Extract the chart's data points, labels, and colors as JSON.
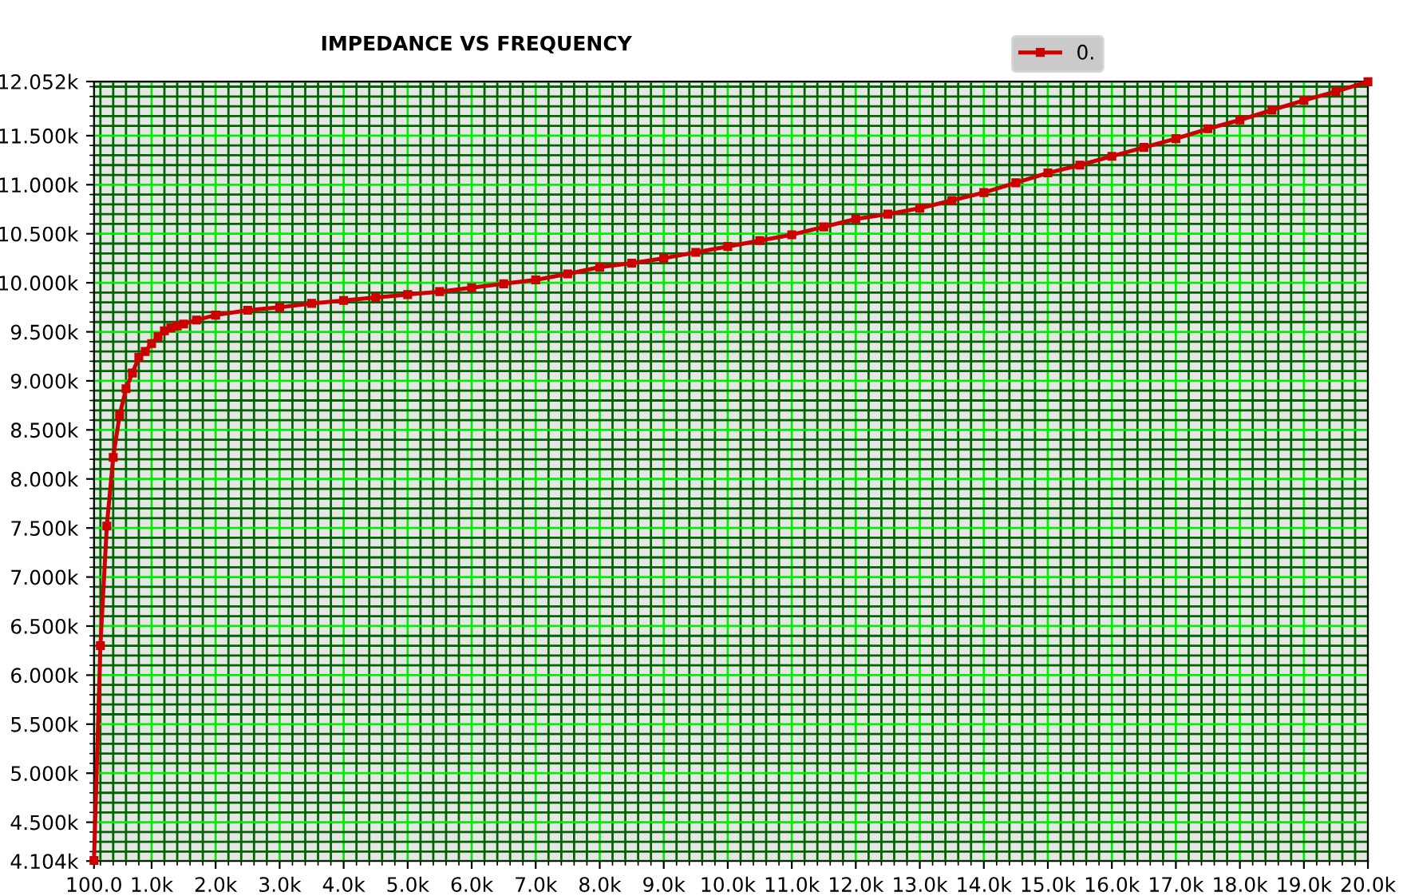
{
  "chart_data": {
    "type": "line",
    "title": "IMPEDANCE VS FREQUENCY",
    "x": [
      100,
      200,
      300,
      400,
      500,
      600,
      700,
      800,
      900,
      1000,
      1100,
      1200,
      1300,
      1400,
      1500,
      1700,
      2000,
      2500,
      3000,
      3500,
      4000,
      4500,
      5000,
      5500,
      6000,
      6500,
      7000,
      7500,
      8000,
      8500,
      9000,
      9500,
      10000,
      10500,
      11000,
      11500,
      12000,
      12500,
      13000,
      13500,
      14000,
      14500,
      15000,
      15500,
      16000,
      16500,
      17000,
      17500,
      18000,
      18500,
      19000,
      19500,
      20000
    ],
    "series": [
      {
        "name": "0.",
        "color": "#cc0000",
        "values": [
          4110,
          6300,
          7520,
          8220,
          8650,
          8920,
          9080,
          9240,
          9300,
          9380,
          9450,
          9510,
          9540,
          9560,
          9580,
          9620,
          9670,
          9720,
          9750,
          9790,
          9820,
          9850,
          9880,
          9910,
          9950,
          9990,
          10030,
          10090,
          10160,
          10200,
          10250,
          10310,
          10370,
          10430,
          10490,
          10570,
          10650,
          10700,
          10760,
          10840,
          10920,
          11020,
          11120,
          11200,
          11290,
          11380,
          11470,
          11570,
          11660,
          11760,
          11860,
          11950,
          12050
        ]
      }
    ],
    "xlim": [
      100,
      20000
    ],
    "xticks": [
      {
        "value": 100,
        "label": "100.0"
      },
      {
        "value": 1000,
        "label": "1.0k"
      },
      {
        "value": 2000,
        "label": "2.0k"
      },
      {
        "value": 3000,
        "label": "3.0k"
      },
      {
        "value": 4000,
        "label": "4.0k"
      },
      {
        "value": 5000,
        "label": "5.0k"
      },
      {
        "value": 6000,
        "label": "6.0k"
      },
      {
        "value": 7000,
        "label": "7.0k"
      },
      {
        "value": 8000,
        "label": "8.0k"
      },
      {
        "value": 9000,
        "label": "9.0k"
      },
      {
        "value": 10000,
        "label": "10.0k"
      },
      {
        "value": 11000,
        "label": "11.0k"
      },
      {
        "value": 12000,
        "label": "12.0k"
      },
      {
        "value": 13000,
        "label": "13.0k"
      },
      {
        "value": 14000,
        "label": "14.0k"
      },
      {
        "value": 15000,
        "label": "15.0k"
      },
      {
        "value": 16000,
        "label": "16.0k"
      },
      {
        "value": 17000,
        "label": "17.0k"
      },
      {
        "value": 18000,
        "label": "18.0k"
      },
      {
        "value": 19000,
        "label": "19.0k"
      },
      {
        "value": 20000,
        "label": "20.0k"
      },
      {
        "value": 200,
        "label": null
      },
      {
        "value": 400,
        "label": null
      },
      {
        "value": 600,
        "label": null
      },
      {
        "value": 800,
        "label": null
      },
      {
        "value": 1200,
        "label": null
      },
      {
        "value": 1400,
        "label": null
      },
      {
        "value": 1600,
        "label": null
      },
      {
        "value": 1800,
        "label": null
      },
      {
        "value": 2200,
        "label": null
      },
      {
        "value": 2400,
        "label": null
      },
      {
        "value": 2600,
        "label": null
      },
      {
        "value": 2800,
        "label": null
      },
      {
        "value": 3200,
        "label": null
      },
      {
        "value": 3400,
        "label": null
      },
      {
        "value": 3600,
        "label": null
      },
      {
        "value": 3800,
        "label": null
      },
      {
        "value": 4200,
        "label": null
      },
      {
        "value": 4400,
        "label": null
      },
      {
        "value": 4600,
        "label": null
      },
      {
        "value": 4800,
        "label": null
      },
      {
        "value": 5200,
        "label": null
      },
      {
        "value": 5400,
        "label": null
      },
      {
        "value": 5600,
        "label": null
      },
      {
        "value": 5800,
        "label": null
      },
      {
        "value": 6200,
        "label": null
      },
      {
        "value": 6400,
        "label": null
      },
      {
        "value": 6600,
        "label": null
      },
      {
        "value": 6800,
        "label": null
      },
      {
        "value": 7200,
        "label": null
      },
      {
        "value": 7400,
        "label": null
      },
      {
        "value": 7600,
        "label": null
      },
      {
        "value": 7800,
        "label": null
      },
      {
        "value": 8200,
        "label": null
      },
      {
        "value": 8400,
        "label": null
      },
      {
        "value": 8600,
        "label": null
      },
      {
        "value": 8800,
        "label": null
      },
      {
        "value": 9200,
        "label": null
      },
      {
        "value": 9400,
        "label": null
      },
      {
        "value": 9600,
        "label": null
      },
      {
        "value": 9800,
        "label": null
      },
      {
        "value": 10200,
        "label": null
      },
      {
        "value": 10400,
        "label": null
      },
      {
        "value": 10600,
        "label": null
      },
      {
        "value": 10800,
        "label": null
      },
      {
        "value": 11200,
        "label": null
      },
      {
        "value": 11400,
        "label": null
      },
      {
        "value": 11600,
        "label": null
      },
      {
        "value": 11800,
        "label": null
      },
      {
        "value": 12200,
        "label": null
      },
      {
        "value": 12400,
        "label": null
      },
      {
        "value": 12600,
        "label": null
      },
      {
        "value": 12800,
        "label": null
      },
      {
        "value": 13200,
        "label": null
      },
      {
        "value": 13400,
        "label": null
      },
      {
        "value": 13600,
        "label": null
      },
      {
        "value": 13800,
        "label": null
      },
      {
        "value": 14200,
        "label": null
      },
      {
        "value": 14400,
        "label": null
      },
      {
        "value": 14600,
        "label": null
      },
      {
        "value": 14800,
        "label": null
      },
      {
        "value": 15200,
        "label": null
      },
      {
        "value": 15400,
        "label": null
      },
      {
        "value": 15600,
        "label": null
      },
      {
        "value": 15800,
        "label": null
      },
      {
        "value": 16200,
        "label": null
      },
      {
        "value": 16400,
        "label": null
      },
      {
        "value": 16600,
        "label": null
      },
      {
        "value": 16800,
        "label": null
      },
      {
        "value": 17200,
        "label": null
      },
      {
        "value": 17400,
        "label": null
      },
      {
        "value": 17600,
        "label": null
      },
      {
        "value": 17800,
        "label": null
      },
      {
        "value": 18200,
        "label": null
      },
      {
        "value": 18400,
        "label": null
      },
      {
        "value": 18600,
        "label": null
      },
      {
        "value": 18800,
        "label": null
      },
      {
        "value": 19200,
        "label": null
      },
      {
        "value": 19400,
        "label": null
      },
      {
        "value": 19600,
        "label": null
      },
      {
        "value": 19800,
        "label": null
      }
    ],
    "ylim": [
      4104,
      12052
    ],
    "yticks": [
      {
        "value": 4104,
        "label": "4.104k"
      },
      {
        "value": 4500,
        "label": "4.500k"
      },
      {
        "value": 5000,
        "label": "5.000k"
      },
      {
        "value": 5500,
        "label": "5.500k"
      },
      {
        "value": 6000,
        "label": "6.000k"
      },
      {
        "value": 6500,
        "label": "6.500k"
      },
      {
        "value": 7000,
        "label": "7.000k"
      },
      {
        "value": 7500,
        "label": "7.500k"
      },
      {
        "value": 8000,
        "label": "8.000k"
      },
      {
        "value": 8500,
        "label": "8.500k"
      },
      {
        "value": 9000,
        "label": "9.000k"
      },
      {
        "value": 9500,
        "label": "9.500k"
      },
      {
        "value": 10000,
        "label": "10.000k"
      },
      {
        "value": 10500,
        "label": "10.500k"
      },
      {
        "value": 11000,
        "label": "11.000k"
      },
      {
        "value": 11500,
        "label": "11.500k"
      },
      {
        "value": 12052,
        "label": "12.052k"
      },
      {
        "value": 4200,
        "label": null
      },
      {
        "value": 4300,
        "label": null
      },
      {
        "value": 4400,
        "label": null
      },
      {
        "value": 4600,
        "label": null
      },
      {
        "value": 4700,
        "label": null
      },
      {
        "value": 4800,
        "label": null
      },
      {
        "value": 4900,
        "label": null
      },
      {
        "value": 5100,
        "label": null
      },
      {
        "value": 5200,
        "label": null
      },
      {
        "value": 5300,
        "label": null
      },
      {
        "value": 5400,
        "label": null
      },
      {
        "value": 5600,
        "label": null
      },
      {
        "value": 5700,
        "label": null
      },
      {
        "value": 5800,
        "label": null
      },
      {
        "value": 5900,
        "label": null
      },
      {
        "value": 6100,
        "label": null
      },
      {
        "value": 6200,
        "label": null
      },
      {
        "value": 6300,
        "label": null
      },
      {
        "value": 6400,
        "label": null
      },
      {
        "value": 6600,
        "label": null
      },
      {
        "value": 6700,
        "label": null
      },
      {
        "value": 6800,
        "label": null
      },
      {
        "value": 6900,
        "label": null
      },
      {
        "value": 7100,
        "label": null
      },
      {
        "value": 7200,
        "label": null
      },
      {
        "value": 7300,
        "label": null
      },
      {
        "value": 7400,
        "label": null
      },
      {
        "value": 7600,
        "label": null
      },
      {
        "value": 7700,
        "label": null
      },
      {
        "value": 7800,
        "label": null
      },
      {
        "value": 7900,
        "label": null
      },
      {
        "value": 8100,
        "label": null
      },
      {
        "value": 8200,
        "label": null
      },
      {
        "value": 8300,
        "label": null
      },
      {
        "value": 8400,
        "label": null
      },
      {
        "value": 8600,
        "label": null
      },
      {
        "value": 8700,
        "label": null
      },
      {
        "value": 8800,
        "label": null
      },
      {
        "value": 8900,
        "label": null
      },
      {
        "value": 9100,
        "label": null
      },
      {
        "value": 9200,
        "label": null
      },
      {
        "value": 9300,
        "label": null
      },
      {
        "value": 9400,
        "label": null
      },
      {
        "value": 9600,
        "label": null
      },
      {
        "value": 9700,
        "label": null
      },
      {
        "value": 9800,
        "label": null
      },
      {
        "value": 9900,
        "label": null
      },
      {
        "value": 10100,
        "label": null
      },
      {
        "value": 10200,
        "label": null
      },
      {
        "value": 10300,
        "label": null
      },
      {
        "value": 10400,
        "label": null
      },
      {
        "value": 10600,
        "label": null
      },
      {
        "value": 10700,
        "label": null
      },
      {
        "value": 10800,
        "label": null
      },
      {
        "value": 10900,
        "label": null
      },
      {
        "value": 11100,
        "label": null
      },
      {
        "value": 11200,
        "label": null
      },
      {
        "value": 11300,
        "label": null
      },
      {
        "value": 11400,
        "label": null
      },
      {
        "value": 11600,
        "label": null
      },
      {
        "value": 11700,
        "label": null
      },
      {
        "value": 11800,
        "label": null
      },
      {
        "value": 11900,
        "label": null
      },
      {
        "value": 12000,
        "label": null
      }
    ],
    "grid": true,
    "legend": "top right",
    "marker": "square",
    "line_style": "solid"
  }
}
